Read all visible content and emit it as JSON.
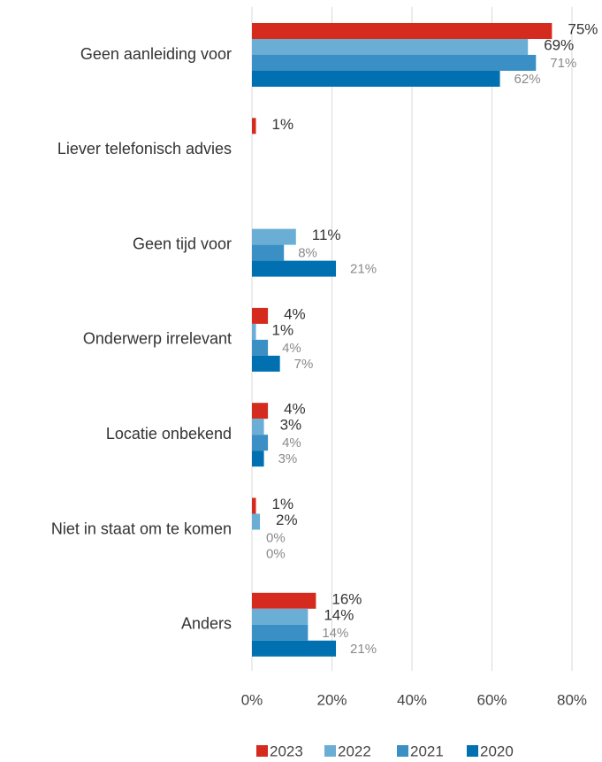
{
  "chart_data": {
    "type": "hbar",
    "categories": [
      "Geen aanleiding voor",
      "Liever telefonisch advies",
      "Geen tijd voor",
      "Onderwerp irrelevant",
      "Locatie onbekend",
      "Niet in staat om te komen",
      "Anders"
    ],
    "series": [
      {
        "name": "2023",
        "color": "#d52b1e",
        "values": [
          75,
          1,
          null,
          4,
          4,
          1,
          16
        ],
        "value_labels": [
          "75%",
          "1%",
          null,
          "4%",
          "4%",
          "1%",
          "16%"
        ]
      },
      {
        "name": "2022",
        "color": "#6aaed6",
        "values": [
          69,
          null,
          11,
          1,
          3,
          2,
          14
        ],
        "value_labels": [
          "69%",
          null,
          "11%",
          "1%",
          "3%",
          "2%",
          "14%"
        ]
      },
      {
        "name": "2021",
        "color": "#3a8fc4",
        "values": [
          71,
          null,
          8,
          4,
          4,
          0,
          14
        ],
        "value_labels": [
          "71%",
          null,
          "8%",
          "4%",
          "4%",
          "0%",
          "14%"
        ]
      },
      {
        "name": "2020",
        "color": "#0070b0",
        "values": [
          62,
          null,
          21,
          7,
          3,
          0,
          21
        ],
        "value_labels": [
          "62%",
          null,
          "21%",
          "7%",
          "3%",
          "0%",
          "21%"
        ]
      }
    ],
    "xlim": [
      0,
      80
    ],
    "xticks": [
      {
        "value": 0,
        "label": "0%"
      },
      {
        "value": 20,
        "label": "20%"
      },
      {
        "value": 40,
        "label": "40%"
      },
      {
        "value": 60,
        "label": "60%"
      },
      {
        "value": 80,
        "label": "80%"
      }
    ],
    "grid": true,
    "legend": "bottom"
  }
}
